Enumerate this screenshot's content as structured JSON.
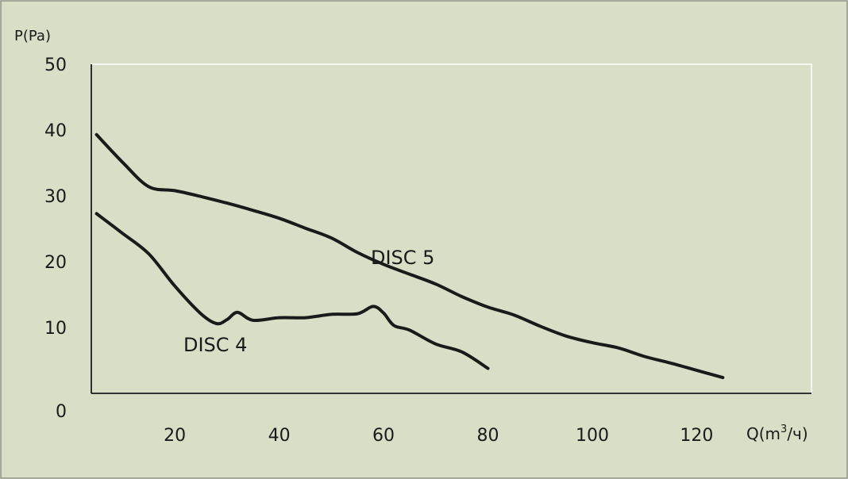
{
  "colors": {
    "background": "#d8dfc6",
    "frame": "#8a8f80",
    "plot_grid": "#ffffff",
    "line": "#1a1a1a"
  },
  "chart_data": {
    "type": "line",
    "title": "",
    "ylabel": "P(Pa)",
    "xlabel": "Q(m³/ч)",
    "xlabel_base": "Q(m",
    "xlabel_sup": "3",
    "xlabel_rest": "/ч)",
    "xlim": [
      4,
      142
    ],
    "ylim": [
      0,
      50
    ],
    "x_ticks": [
      20,
      40,
      60,
      80,
      100,
      120
    ],
    "y_ticks": [
      0,
      10,
      20,
      30,
      40,
      50
    ],
    "grid": false,
    "series": [
      {
        "name": "DISC 5",
        "x": [
          5,
          10,
          15,
          20,
          25,
          30,
          35,
          40,
          45,
          50,
          55,
          60,
          65,
          70,
          75,
          80,
          85,
          90,
          95,
          100,
          105,
          110,
          115,
          120,
          125
        ],
        "y": [
          39.3,
          35.1,
          31.4,
          30.8,
          29.9,
          28.9,
          27.8,
          26.6,
          25.1,
          23.6,
          21.4,
          19.6,
          18.1,
          16.6,
          14.7,
          13.1,
          11.9,
          10.2,
          8.7,
          7.7,
          6.9,
          5.6,
          4.6,
          3.5,
          2.4
        ]
      },
      {
        "name": "DISC 4",
        "x": [
          5,
          10,
          15,
          20,
          25,
          28,
          30,
          32,
          35,
          40,
          45,
          50,
          55,
          58,
          60,
          62,
          65,
          70,
          75,
          80
        ],
        "y": [
          27.3,
          24.3,
          21.2,
          16.3,
          12.1,
          10.6,
          11.2,
          12.3,
          11.1,
          11.5,
          11.5,
          12.0,
          12.1,
          13.2,
          12.2,
          10.3,
          9.6,
          7.5,
          6.3,
          3.8
        ]
      }
    ]
  }
}
